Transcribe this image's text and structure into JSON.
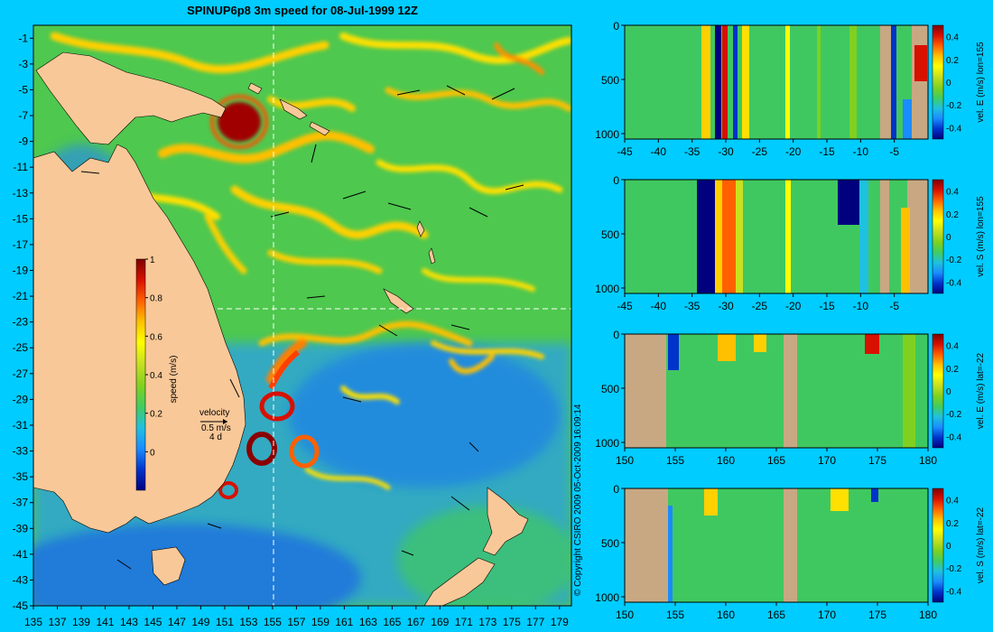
{
  "colors": {
    "background": "#00ccff",
    "land": "#f9c898",
    "section_land": "#c8a882",
    "colormap": [
      "#00007f",
      "#0033cc",
      "#1a8cff",
      "#20c0e0",
      "#40cc60",
      "#7fd020",
      "#c8e020",
      "#ffff00",
      "#ffc000",
      "#ff6000",
      "#d81000",
      "#7f0000"
    ]
  },
  "map": {
    "title": "SPINUP6p8 3m speed for 08-Jul-1999 12Z",
    "lon_ticks": [
      "135",
      "137",
      "139",
      "141",
      "143",
      "145",
      "147",
      "149",
      "151",
      "153",
      "155",
      "157",
      "159",
      "161",
      "163",
      "165",
      "167",
      "169",
      "171",
      "173",
      "175",
      "177",
      "179"
    ],
    "lat_ticks": [
      "-1",
      "-3",
      "-5",
      "-7",
      "-9",
      "-11",
      "-13",
      "-15",
      "-17",
      "-19",
      "-21",
      "-23",
      "-25",
      "-27",
      "-29",
      "-31",
      "-33",
      "-35",
      "-37",
      "-39",
      "-41",
      "-43",
      "-45"
    ],
    "lon_range": [
      135,
      180
    ],
    "lat_range": [
      -45,
      0
    ],
    "section_lon": 155,
    "section_lat": -22,
    "colorbar": {
      "label": "speed (m/s)",
      "ticks": [
        "1",
        "0.8",
        "0.6",
        "0.4",
        "0.2",
        "0"
      ],
      "range": [
        -0.2,
        1
      ]
    },
    "velocity_key": {
      "title": "velocity",
      "scale": "0.5 m/s",
      "time": "4 d"
    },
    "copyright": "© Copyright CSIRO 2009   05-Oct-2009 16:09:14"
  },
  "sections": [
    {
      "label": "vel. E (m/s) lon=155",
      "x_ticks": [
        "-45",
        "-40",
        "-35",
        "-30",
        "-25",
        "-20",
        "-15",
        "-10",
        "-5"
      ],
      "y_ticks": [
        "0",
        "500",
        "1000"
      ],
      "cb_ticks": [
        "0.4",
        "0.2",
        "0",
        "-0.2",
        "-0.4"
      ]
    },
    {
      "label": "vel. S (m/s) lon=155",
      "x_ticks": [
        "-45",
        "-40",
        "-35",
        "-30",
        "-25",
        "-20",
        "-15",
        "-10",
        "-5"
      ],
      "y_ticks": [
        "0",
        "500",
        "1000"
      ],
      "cb_ticks": [
        "0.4",
        "0.2",
        "0",
        "-0.2",
        "-0.4"
      ]
    },
    {
      "label": "vel. E (m/s) lat=-22",
      "x_ticks": [
        "150",
        "155",
        "160",
        "165",
        "170",
        "175",
        "180"
      ],
      "y_ticks": [
        "0",
        "500",
        "1000"
      ],
      "cb_ticks": [
        "0.4",
        "0.2",
        "0",
        "-0.2",
        "-0.4"
      ]
    },
    {
      "label": "vel. S (m/s) lat=-22",
      "x_ticks": [
        "150",
        "155",
        "160",
        "165",
        "170",
        "175",
        "180"
      ],
      "y_ticks": [
        "0",
        "500",
        "1000"
      ],
      "cb_ticks": [
        "0.4",
        "0.2",
        "0",
        "-0.2",
        "-0.4"
      ]
    }
  ]
}
